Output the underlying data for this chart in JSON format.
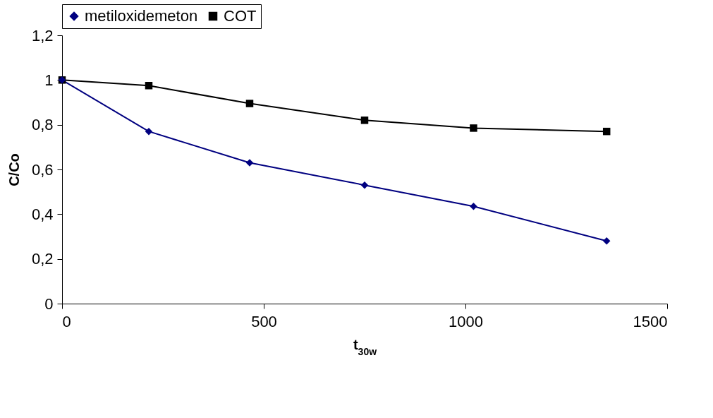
{
  "chart_data": {
    "type": "line",
    "xlabel": "t$_{30w}$",
    "ylabel": "C/Co",
    "legend": "top",
    "grid": false,
    "x": [
      0,
      215,
      465,
      750,
      1020,
      1350
    ],
    "xlim": [
      0,
      1500
    ],
    "xticks": [
      0,
      500,
      1000,
      1500
    ],
    "ylim": [
      0,
      1.2
    ],
    "yticks": [
      0,
      {
        "value": 0.2,
        "label": "0,2"
      },
      {
        "value": 0.4,
        "label": "0,4"
      },
      {
        "value": 0.6,
        "label": "0,6"
      },
      {
        "value": 0.8,
        "label": "0,8"
      },
      1,
      {
        "value": 1.2,
        "label": "1,2"
      }
    ],
    "series": [
      {
        "name": "metiloxidemeton",
        "color": "#000080",
        "marker": "diamond",
        "values": [
          1,
          0.77,
          0.63,
          0.53,
          0.435,
          0.28
        ]
      },
      {
        "name": "COT",
        "color": "#000000",
        "marker": "square",
        "values": [
          1,
          0.975,
          0.895,
          0.82,
          0.785,
          0.77
        ]
      }
    ]
  }
}
